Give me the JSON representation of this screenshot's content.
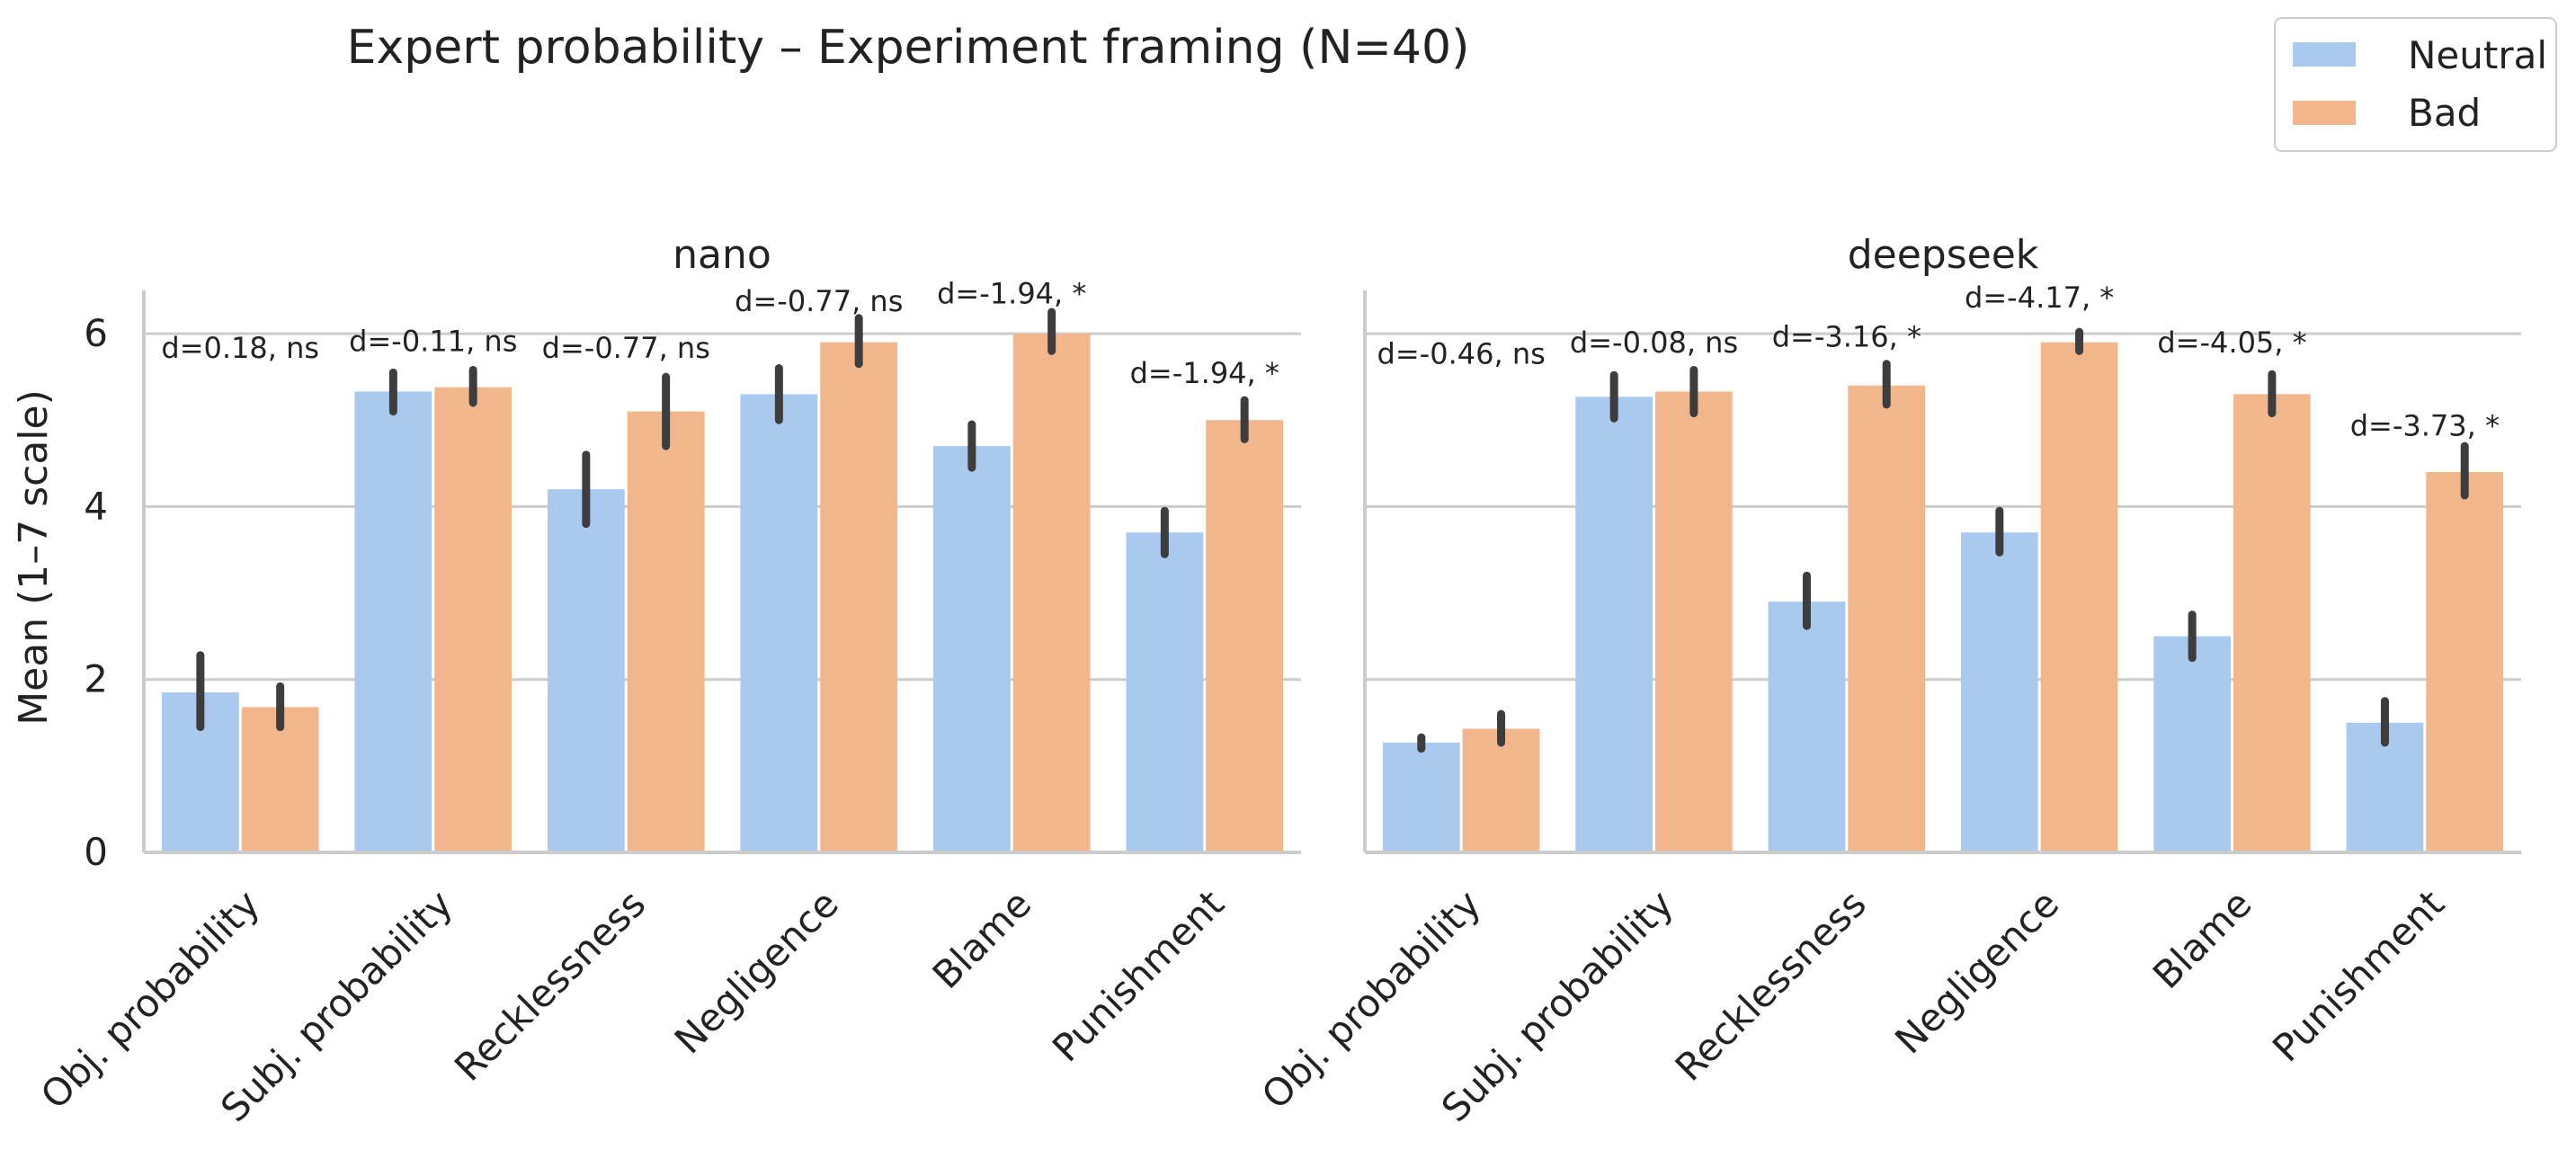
{
  "figure": {
    "title": "Expert probability – Experiment framing (N=40)",
    "ylabel": "Mean (1–7 scale)"
  },
  "legend": {
    "placement": "top-right",
    "items": [
      {
        "label": "Neutral",
        "color": "#a9c9ef"
      },
      {
        "label": "Bad",
        "color": "#f2b68c"
      }
    ]
  },
  "colors": {
    "neutral": "#a9c9ef",
    "bad": "#f2b68c",
    "errorbar": "#3d3d3d",
    "grid": "#cccccc",
    "axis": "#cccccc"
  },
  "chart_data": [
    {
      "type": "bar",
      "title": "nano",
      "categories": [
        "Obj. probability",
        "Subj. probability",
        "Recklessness",
        "Negligence",
        "Blame",
        "Punishment"
      ],
      "ylim": [
        0,
        6.5
      ],
      "yticks": [
        0,
        2,
        4,
        6
      ],
      "grid": true,
      "series": [
        {
          "name": "Neutral",
          "values": [
            1.85,
            5.33,
            4.2,
            5.3,
            4.7,
            3.7
          ],
          "err_low": [
            1.45,
            5.1,
            3.8,
            5.0,
            4.45,
            3.45
          ],
          "err_high": [
            2.28,
            5.55,
            4.6,
            5.6,
            4.95,
            3.95
          ]
        },
        {
          "name": "Bad",
          "values": [
            1.68,
            5.38,
            5.1,
            5.9,
            6.0,
            5.0
          ],
          "err_low": [
            1.45,
            5.2,
            4.7,
            5.65,
            5.8,
            4.78
          ],
          "err_high": [
            1.92,
            5.58,
            5.5,
            6.18,
            6.25,
            5.23
          ]
        }
      ],
      "annotations": [
        {
          "text": "d=0.18, ns",
          "y": 5.72
        },
        {
          "text": "d=-0.11, ns",
          "y": 5.8
        },
        {
          "text": "d=-0.77, ns",
          "y": 5.72
        },
        {
          "text": "d=-0.77, ns",
          "y": 6.26
        },
        {
          "text": "d=-1.94, *",
          "y": 6.35
        },
        {
          "text": "d=-1.94, *",
          "y": 5.43
        }
      ]
    },
    {
      "type": "bar",
      "title": "deepseek",
      "categories": [
        "Obj. probability",
        "Subj. probability",
        "Recklessness",
        "Negligence",
        "Blame",
        "Punishment"
      ],
      "ylim": [
        0,
        6.5
      ],
      "yticks": [
        0,
        2,
        4,
        6
      ],
      "grid": true,
      "series": [
        {
          "name": "Neutral",
          "values": [
            1.27,
            5.27,
            2.9,
            3.7,
            2.5,
            1.5
          ],
          "err_low": [
            1.2,
            5.02,
            2.62,
            3.47,
            2.25,
            1.27
          ],
          "err_high": [
            1.33,
            5.52,
            3.2,
            3.95,
            2.75,
            1.75
          ]
        },
        {
          "name": "Bad",
          "values": [
            1.43,
            5.33,
            5.4,
            5.9,
            5.3,
            4.4
          ],
          "err_low": [
            1.27,
            5.08,
            5.18,
            5.8,
            5.08,
            4.13
          ],
          "err_high": [
            1.6,
            5.58,
            5.65,
            6.02,
            5.53,
            4.7
          ]
        }
      ],
      "annotations": [
        {
          "text": "d=-0.46, ns",
          "y": 5.65
        },
        {
          "text": "d=-0.08, ns",
          "y": 5.78
        },
        {
          "text": "d=-3.16, *",
          "y": 5.85
        },
        {
          "text": "d=-4.17, *",
          "y": 6.3
        },
        {
          "text": "d=-4.05, *",
          "y": 5.78
        },
        {
          "text": "d=-3.73, *",
          "y": 4.82
        }
      ]
    }
  ]
}
